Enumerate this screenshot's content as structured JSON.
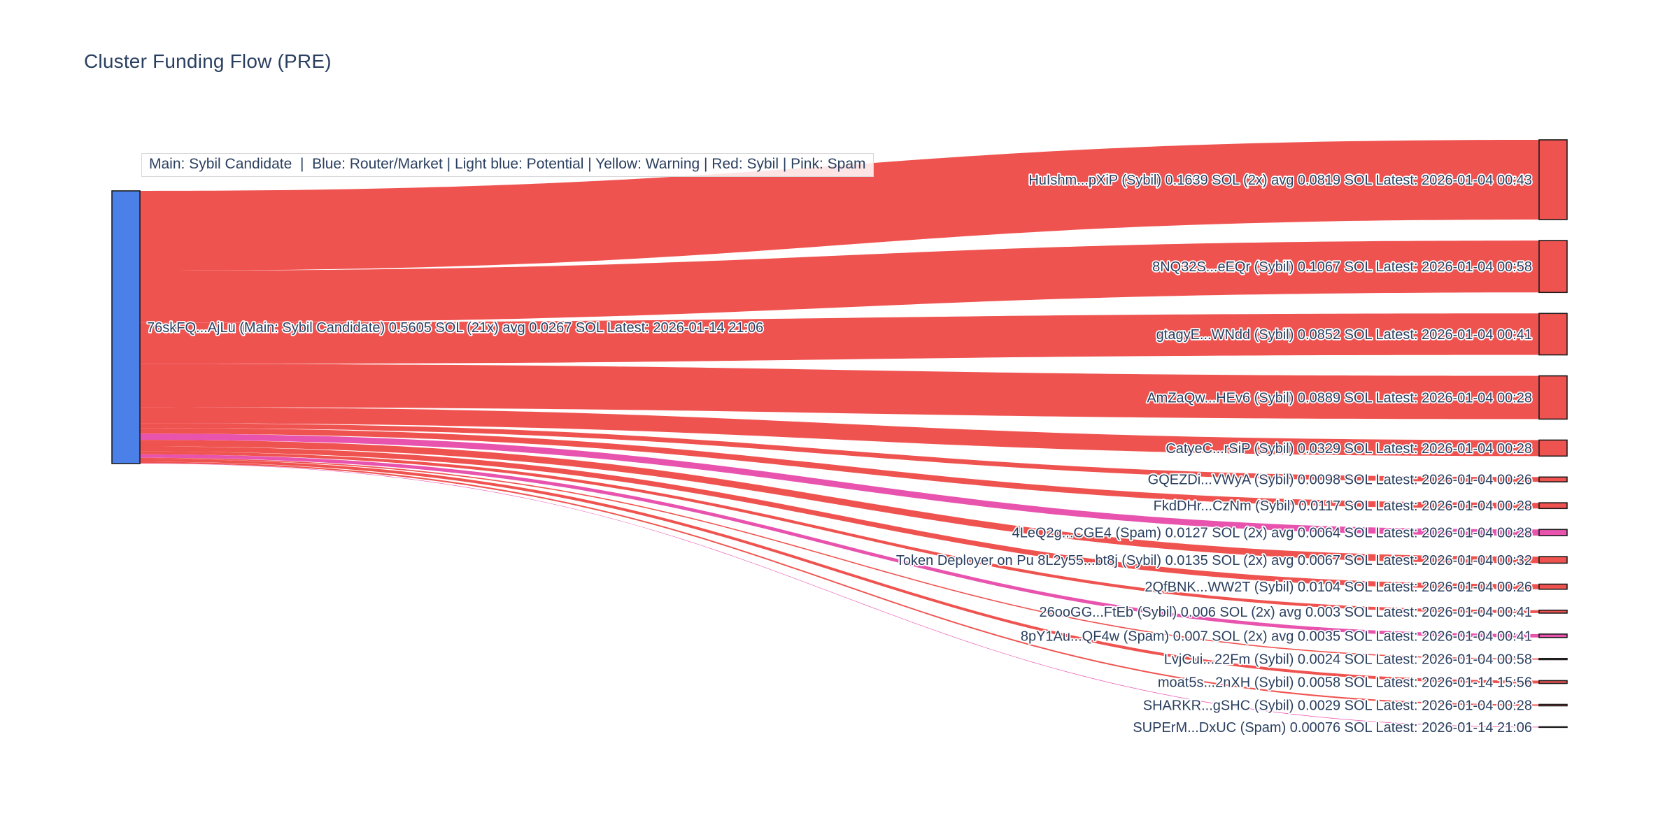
{
  "title": "Cluster Funding Flow (PRE)",
  "legend": {
    "text": "Main: Sybil Candidate  |  Blue: Router/Market | Light blue: Potential | Yellow: Warning | Red: Sybil | Pink: Spam"
  },
  "colors": {
    "main_blue": "#4a80e8",
    "sybil_red": "#ef5350",
    "spam_pink": "#e853ae",
    "node_border": "#1c1c1c",
    "label_text": "#2a3f5f"
  },
  "chart_data": {
    "type": "sankey",
    "unit": "SOL",
    "source_node": {
      "address": "76skFQ...AjLu",
      "role": "Main: Sybil Candidate",
      "total_sol": 0.5605,
      "tx_count": "21x",
      "avg_sol": 0.0267,
      "latest": "2026-01-14 21:06",
      "color_key": "main_blue",
      "label": "76skFQ...AjLu (Main: Sybil Candidate) 0.5605 SOL (21x) avg 0.0267 SOL Latest: 2026-01-14 21:06"
    },
    "targets": [
      {
        "address": "HuIshm...pXiP",
        "type": "Sybil",
        "sol": 0.1639,
        "tx_count": "2x",
        "avg_sol": 0.0819,
        "latest": "2026-01-04 00:43",
        "color_key": "sybil_red",
        "label": "HuIshm...pXiP (Sybil) 0.1639 SOL (2x) avg 0.0819 SOL Latest: 2026-01-04 00:43"
      },
      {
        "address": "8NQ32S...eEQr",
        "type": "Sybil",
        "sol": 0.1067,
        "latest": "2026-01-04 00:58",
        "color_key": "sybil_red",
        "label": "8NQ32S...eEQr (Sybil) 0.1067 SOL Latest: 2026-01-04 00:58"
      },
      {
        "address": "gtagyE...WNdd",
        "type": "Sybil",
        "sol": 0.0852,
        "latest": "2026-01-04 00:41",
        "color_key": "sybil_red",
        "label": "gtagyE...WNdd (Sybil) 0.0852 SOL Latest: 2026-01-04 00:41"
      },
      {
        "address": "AmZaQw...HEv6",
        "type": "Sybil",
        "sol": 0.0889,
        "latest": "2026-01-04 00:28",
        "color_key": "sybil_red",
        "label": "AmZaQw...HEv6 (Sybil) 0.0889 SOL Latest: 2026-01-04 00:28"
      },
      {
        "address": "CatyeC...rSiP",
        "type": "Sybil",
        "sol": 0.0329,
        "latest": "2026-01-04 00:28",
        "color_key": "sybil_red",
        "label": "CatyeC...rSiP (Sybil) 0.0329 SOL Latest: 2026-01-04 00:28"
      },
      {
        "address": "GQEZDi...VWyA",
        "type": "Sybil",
        "sol": 0.0098,
        "latest": "2026-01-04 00:26",
        "color_key": "sybil_red",
        "label": "GQEZDi...VWyA (Sybil) 0.0098 SOL Latest: 2026-01-04 00:26"
      },
      {
        "address": "FkdDHr...CzNm",
        "type": "Sybil",
        "sol": 0.0117,
        "latest": "2026-01-04 00:28",
        "color_key": "sybil_red",
        "label": "FkdDHr...CzNm (Sybil) 0.0117 SOL Latest: 2026-01-04 00:28"
      },
      {
        "address": "4LeQ2g...CGE4",
        "type": "Spam",
        "sol": 0.0127,
        "tx_count": "2x",
        "avg_sol": 0.0064,
        "latest": "2026-01-04 00:28",
        "color_key": "spam_pink",
        "label": "4LeQ2g...CGE4 (Spam) 0.0127 SOL (2x) avg 0.0064 SOL Latest: 2026-01-04 00:28"
      },
      {
        "address": "Token Deployer on Pu 8L2y55...bt8j",
        "type": "Sybil",
        "sol": 0.0135,
        "tx_count": "2x",
        "avg_sol": 0.0067,
        "latest": "2026-01-04 00:32",
        "color_key": "sybil_red",
        "label": "Token Deployer on Pu 8L2y55...bt8j (Sybil) 0.0135 SOL (2x) avg 0.0067 SOL Latest: 2026-01-04 00:32"
      },
      {
        "address": "2QfBNK...WW2T",
        "type": "Sybil",
        "sol": 0.0104,
        "latest": "2026-01-04 00:26",
        "color_key": "sybil_red",
        "label": "2QfBNK...WW2T (Sybil) 0.0104 SOL Latest: 2026-01-04 00:26"
      },
      {
        "address": "26ooGG...FtEb",
        "type": "Sybil",
        "sol": 0.006,
        "tx_count": "2x",
        "avg_sol": 0.003,
        "latest": "2026-01-04 00:41",
        "color_key": "sybil_red",
        "label": "26ooGG...FtEb (Sybil) 0.006 SOL (2x) avg 0.003 SOL Latest: 2026-01-04 00:41"
      },
      {
        "address": "8pY1Au...QF4w",
        "type": "Spam",
        "sol": 0.007,
        "tx_count": "2x",
        "avg_sol": 0.0035,
        "latest": "2026-01-04 00:41",
        "color_key": "spam_pink",
        "label": "8pY1Au...QF4w (Spam) 0.007 SOL (2x) avg 0.0035 SOL Latest: 2026-01-04 00:41"
      },
      {
        "address": "LvjCui...22Fm",
        "type": "Sybil",
        "sol": 0.0024,
        "latest": "2026-01-04 00:58",
        "color_key": "sybil_red",
        "label": "LvjCui...22Fm (Sybil) 0.0024 SOL Latest: 2026-01-04 00:58"
      },
      {
        "address": "moat5s...2nXH",
        "type": "Sybil",
        "sol": 0.0058,
        "latest": "2026-01-14 15:56",
        "color_key": "sybil_red",
        "label": "moat5s...2nXH (Sybil) 0.0058 SOL Latest: 2026-01-14 15:56"
      },
      {
        "address": "SHARKR...gSHC",
        "type": "Sybil",
        "sol": 0.0029,
        "latest": "2026-01-04 00:28",
        "color_key": "sybil_red",
        "label": "SHARKR...gSHC (Sybil) 0.0029 SOL Latest: 2026-01-04 00:28"
      },
      {
        "address": "SUPErM...DxUC",
        "type": "Spam",
        "sol": 0.00076,
        "latest": "2026-01-14 21:06",
        "color_key": "spam_pink",
        "label": "SUPErM...DxUC (Spam) 0.00076 SOL Latest: 2026-01-14 21:06"
      }
    ]
  }
}
